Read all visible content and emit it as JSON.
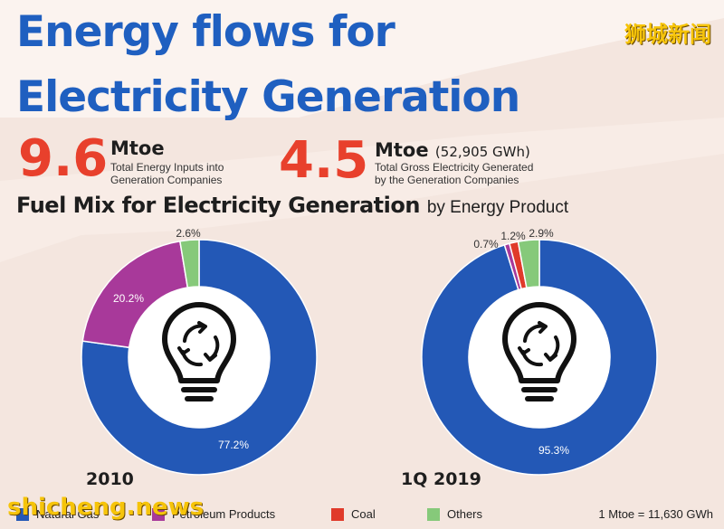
{
  "header": {
    "title_line1": "Energy flows for",
    "title_line2": "Electricity Generation",
    "watermark_top": "狮城新闻",
    "watermark_bottom": "shicheng.news"
  },
  "stats": [
    {
      "number": "9.6",
      "unit": "Mtoe",
      "unit_note": "",
      "desc_line1": "Total Energy Inputs into",
      "desc_line2": "Generation Companies"
    },
    {
      "number": "4.5",
      "unit": "Mtoe",
      "unit_note": "(52,905 GWh)",
      "desc_line1": "Total Gross Electricity Generated",
      "desc_line2": "by the Generation Companies"
    }
  ],
  "section": {
    "title": "Fuel Mix for Electricity Generation",
    "subtitle": "by Energy Product"
  },
  "colors": {
    "natural_gas": "#2358b6",
    "petroleum": "#a8399a",
    "coal": "#e03a2a",
    "others": "#86c97a",
    "accent_red": "#e8402c",
    "title_blue": "#1f5fc0"
  },
  "chart_data": [
    {
      "type": "pie",
      "title": "2010",
      "donut": true,
      "categories": [
        "Natural Gas",
        "Petroleum Products",
        "Coal",
        "Others"
      ],
      "values": [
        77.2,
        20.2,
        0,
        2.6
      ],
      "labels": [
        "77.2%",
        "20.2%",
        "",
        "2.6%"
      ],
      "center_icon": "lightbulb-recycle-icon"
    },
    {
      "type": "pie",
      "title": "1Q 2019",
      "donut": true,
      "categories": [
        "Natural Gas",
        "Petroleum Products",
        "Coal",
        "Others"
      ],
      "values": [
        95.3,
        0.7,
        1.2,
        2.9
      ],
      "labels": [
        "95.3%",
        "0.7%",
        "1.2%",
        "2.9%"
      ],
      "center_icon": "lightbulb-recycle-icon"
    }
  ],
  "legend": {
    "items": [
      {
        "label": "Natural Gas",
        "color": "#2358b6"
      },
      {
        "label": "Petroleum Products",
        "color": "#a8399a"
      },
      {
        "label": "Coal",
        "color": "#e03a2a"
      },
      {
        "label": "Others",
        "color": "#86c97a"
      }
    ],
    "conversion": "1 Mtoe = 11,630 GWh"
  }
}
